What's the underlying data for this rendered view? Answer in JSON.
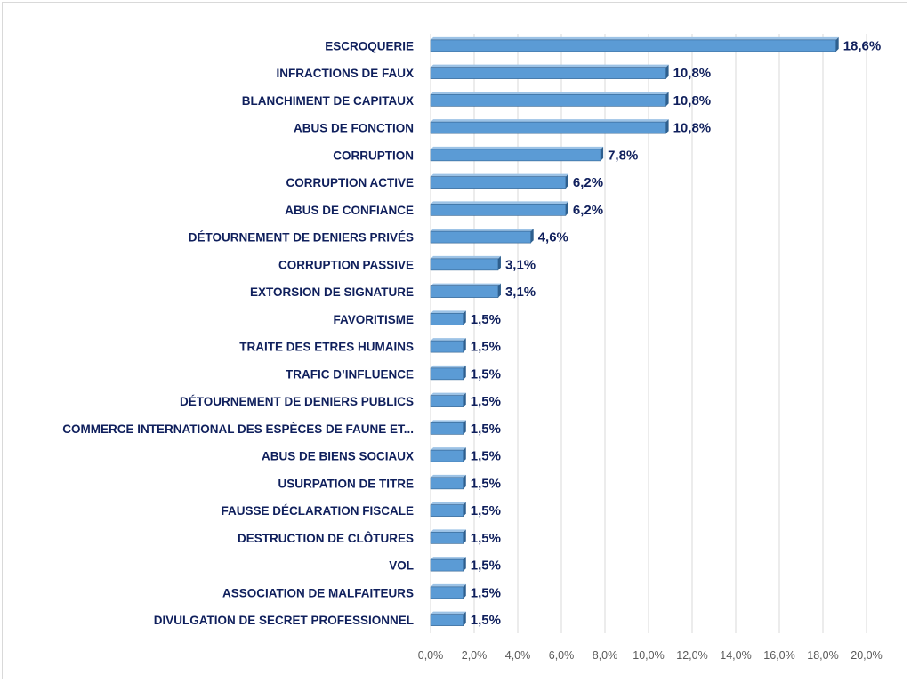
{
  "chart_data": {
    "type": "bar",
    "orientation": "horizontal",
    "title": "",
    "xlabel": "",
    "ylabel": "",
    "xlim": [
      0,
      20
    ],
    "x_tick_labels": [
      "0,0%",
      "2,0%",
      "4,0%",
      "6,0%",
      "8,0%",
      "10,0%",
      "12,0%",
      "14,0%",
      "16,0%",
      "18,0%",
      "20,0%"
    ],
    "grid": "vertical",
    "legend": "none",
    "colors": {
      "bar": "#5b9bd5",
      "bar_side": "#2e5f8e",
      "bar_top": "#9dc3e6",
      "label": "#0f1f5c",
      "grid": "#d9d9d9",
      "tick": "#595959"
    },
    "categories": [
      "ESCROQUERIE",
      "INFRACTIONS DE FAUX",
      "BLANCHIMENT DE CAPITAUX",
      "ABUS DE FONCTION",
      "CORRUPTION",
      "CORRUPTION ACTIVE",
      "ABUS DE CONFIANCE",
      "DÉTOURNEMENT DE DENIERS PRIVÉS",
      "CORRUPTION PASSIVE",
      "EXTORSION DE SIGNATURE",
      "FAVORITISME",
      "TRAITE DES ETRES HUMAINS",
      "TRAFIC D’INFLUENCE",
      "DÉTOURNEMENT DE DENIERS PUBLICS",
      "COMMERCE INTERNATIONAL DES ESPÈCES DE FAUNE ET...",
      "ABUS DE BIENS SOCIAUX",
      "USURPATION DE TITRE",
      "FAUSSE DÉCLARATION FISCALE",
      "DESTRUCTION DE CLÔTURES",
      "VOL",
      "ASSOCIATION DE MALFAITEURS",
      "DIVULGATION DE SECRET PROFESSIONNEL"
    ],
    "values": [
      18.6,
      10.8,
      10.8,
      10.8,
      7.8,
      6.2,
      6.2,
      4.6,
      3.1,
      3.1,
      1.5,
      1.5,
      1.5,
      1.5,
      1.5,
      1.5,
      1.5,
      1.5,
      1.5,
      1.5,
      1.5,
      1.5
    ],
    "data_labels": [
      "18,6%",
      "10,8%",
      "10,8%",
      "10,8%",
      "7,8%",
      "6,2%",
      "6,2%",
      "4,6%",
      "3,1%",
      "3,1%",
      "1,5%",
      "1,5%",
      "1,5%",
      "1,5%",
      "1,5%",
      "1,5%",
      "1,5%",
      "1,5%",
      "1,5%",
      "1,5%",
      "1,5%",
      "1,5%"
    ]
  }
}
